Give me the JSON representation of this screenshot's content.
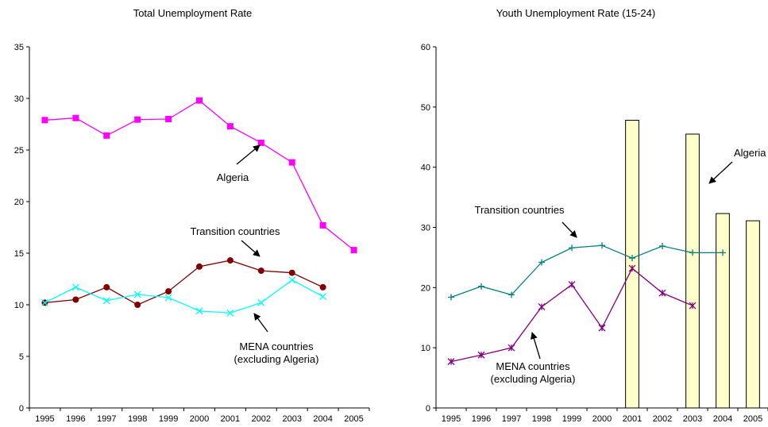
{
  "chart_data": [
    {
      "type": "line",
      "title": "Total Unemployment Rate",
      "xlabel": "",
      "ylabel": "",
      "categories": [
        "1995",
        "1996",
        "1997",
        "1998",
        "1999",
        "2000",
        "2001",
        "2002",
        "2003",
        "2004",
        "2005"
      ],
      "ylim": [
        0,
        35
      ],
      "yticks": [
        0,
        5,
        10,
        15,
        20,
        25,
        30,
        35
      ],
      "grid": false,
      "legend": "none",
      "series": [
        {
          "name": "Algeria",
          "color": "#ff00ff",
          "marker": "square",
          "values": [
            27.9,
            28.1,
            26.4,
            27.95,
            28.0,
            29.8,
            27.3,
            25.7,
            23.8,
            17.7,
            15.3
          ]
        },
        {
          "name": "Transition countries",
          "color": "#800000",
          "marker": "circle",
          "values": [
            10.2,
            10.5,
            11.7,
            10.0,
            11.3,
            13.7,
            14.3,
            13.3,
            13.1,
            11.7,
            null
          ]
        },
        {
          "name": "MENA countries",
          "color": "#00ffff",
          "marker": "x",
          "values": [
            10.2,
            11.7,
            10.4,
            11.0,
            10.7,
            9.4,
            9.2,
            10.2,
            12.4,
            10.8,
            null
          ]
        }
      ],
      "annotations": [
        {
          "lines": [
            "Algeria"
          ],
          "series": "Algeria"
        },
        {
          "lines": [
            "Transition countries"
          ],
          "series": "Transition countries"
        },
        {
          "lines": [
            "MENA countries",
            "(excluding Algeria)"
          ],
          "series": "MENA countries"
        }
      ]
    },
    {
      "type": "line",
      "title": "Youth Unemployment Rate (15-24)",
      "xlabel": "",
      "ylabel": "",
      "categories": [
        "1995",
        "1996",
        "1997",
        "1998",
        "1999",
        "2000",
        "2001",
        "2002",
        "2003",
        "2004",
        "2005"
      ],
      "ylim": [
        0,
        60
      ],
      "yticks": [
        0,
        10,
        20,
        30,
        40,
        50,
        60
      ],
      "grid": false,
      "legend": "none",
      "bars": {
        "name": "Algeria",
        "color": "#ffffcc",
        "stroke": "#000000",
        "values": [
          null,
          null,
          null,
          null,
          null,
          null,
          47.8,
          null,
          45.5,
          32.3,
          31.1
        ]
      },
      "series": [
        {
          "name": "Transition countries",
          "color": "#008080",
          "marker": "plus",
          "values": [
            18.4,
            20.2,
            18.8,
            24.2,
            26.6,
            27.0,
            24.9,
            26.9,
            25.8,
            25.8,
            null
          ]
        },
        {
          "name": "MENA countries",
          "color": "#800080",
          "marker": "star",
          "values": [
            7.7,
            8.8,
            10.0,
            16.8,
            20.5,
            13.3,
            23.2,
            19.1,
            17.0,
            null,
            null
          ]
        }
      ],
      "annotations": [
        {
          "lines": [
            "Algeria"
          ],
          "series": "Algeria"
        },
        {
          "lines": [
            "Transition countries"
          ],
          "series": "Transition countries"
        },
        {
          "lines": [
            "MENA countries",
            "(excluding Algeria)"
          ],
          "series": "MENA countries"
        }
      ]
    }
  ]
}
